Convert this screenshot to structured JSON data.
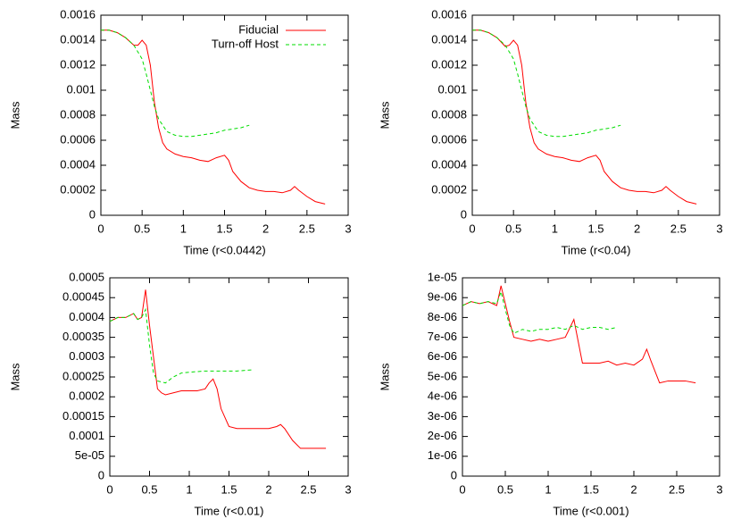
{
  "chart_data": [
    {
      "type": "line",
      "xlabel": "Time (r<0.0442)",
      "ylabel": "Mass",
      "xlim": [
        0,
        3
      ],
      "ylim": [
        0,
        0.0016
      ],
      "xticks": [
        0,
        0.5,
        1,
        1.5,
        2,
        2.5,
        3
      ],
      "yticks": [
        0,
        0.0002,
        0.0004,
        0.0006,
        0.0008,
        0.001,
        0.0012,
        0.0014,
        0.0016
      ],
      "legend": "upper right",
      "series": [
        {
          "name": "Fiducial",
          "color": "#ff0000",
          "dashed": false,
          "x": [
            0,
            0.1,
            0.2,
            0.3,
            0.4,
            0.45,
            0.5,
            0.55,
            0.6,
            0.65,
            0.7,
            0.75,
            0.8,
            0.9,
            1.0,
            1.1,
            1.2,
            1.3,
            1.4,
            1.5,
            1.55,
            1.6,
            1.7,
            1.8,
            1.9,
            2.0,
            2.1,
            2.2,
            2.3,
            2.35,
            2.4,
            2.5,
            2.6,
            2.72
          ],
          "values": [
            0.00148,
            0.00148,
            0.00146,
            0.00142,
            0.00136,
            0.00136,
            0.0014,
            0.00136,
            0.0012,
            0.0009,
            0.0007,
            0.00058,
            0.00053,
            0.00049,
            0.00047,
            0.00046,
            0.00044,
            0.00043,
            0.00046,
            0.00048,
            0.00044,
            0.00035,
            0.00027,
            0.00022,
            0.0002,
            0.00019,
            0.00019,
            0.00018,
            0.0002,
            0.00023,
            0.0002,
            0.00015,
            0.00011,
            9e-05
          ]
        },
        {
          "name": "Turn-off Host",
          "color": "#00dd00",
          "dashed": true,
          "x": [
            0,
            0.1,
            0.2,
            0.3,
            0.4,
            0.5,
            0.55,
            0.6,
            0.65,
            0.7,
            0.8,
            0.9,
            1.0,
            1.1,
            1.2,
            1.3,
            1.4,
            1.5,
            1.6,
            1.7,
            1.8
          ],
          "values": [
            0.00148,
            0.00148,
            0.00146,
            0.00142,
            0.00136,
            0.00125,
            0.00113,
            0.001,
            0.00087,
            0.00077,
            0.00067,
            0.00064,
            0.00063,
            0.00063,
            0.00064,
            0.00065,
            0.00066,
            0.00068,
            0.00069,
            0.0007,
            0.00072
          ]
        }
      ]
    },
    {
      "type": "line",
      "xlabel": "Time (r<0.04)",
      "ylabel": "Mass",
      "xlim": [
        0,
        3
      ],
      "ylim": [
        0,
        0.0016
      ],
      "xticks": [
        0,
        0.5,
        1,
        1.5,
        2,
        2.5,
        3
      ],
      "yticks": [
        0,
        0.0002,
        0.0004,
        0.0006,
        0.0008,
        0.001,
        0.0012,
        0.0014,
        0.0016
      ],
      "series": [
        {
          "color": "#ff0000",
          "dashed": false,
          "x": [
            0,
            0.1,
            0.2,
            0.3,
            0.4,
            0.45,
            0.5,
            0.55,
            0.6,
            0.65,
            0.7,
            0.75,
            0.8,
            0.9,
            1.0,
            1.1,
            1.2,
            1.3,
            1.4,
            1.5,
            1.55,
            1.6,
            1.7,
            1.8,
            1.9,
            2.0,
            2.1,
            2.2,
            2.3,
            2.35,
            2.4,
            2.5,
            2.6,
            2.72
          ],
          "values": [
            0.00148,
            0.00148,
            0.00146,
            0.00142,
            0.00135,
            0.00136,
            0.0014,
            0.00136,
            0.0012,
            0.0009,
            0.0007,
            0.00058,
            0.00053,
            0.00049,
            0.00047,
            0.00046,
            0.00044,
            0.00043,
            0.00046,
            0.00048,
            0.00044,
            0.00035,
            0.00027,
            0.00022,
            0.0002,
            0.00019,
            0.00019,
            0.00018,
            0.0002,
            0.00023,
            0.0002,
            0.00015,
            0.00011,
            9e-05
          ]
        },
        {
          "color": "#00dd00",
          "dashed": true,
          "x": [
            0,
            0.1,
            0.2,
            0.3,
            0.4,
            0.5,
            0.55,
            0.6,
            0.65,
            0.7,
            0.8,
            0.9,
            1.0,
            1.1,
            1.2,
            1.3,
            1.4,
            1.5,
            1.6,
            1.7,
            1.8
          ],
          "values": [
            0.00148,
            0.00148,
            0.00146,
            0.00142,
            0.00136,
            0.00125,
            0.00113,
            0.001,
            0.00087,
            0.00077,
            0.00067,
            0.00064,
            0.00063,
            0.00063,
            0.00064,
            0.00065,
            0.00066,
            0.00068,
            0.00069,
            0.0007,
            0.00072
          ]
        }
      ]
    },
    {
      "type": "line",
      "xlabel": "Time (r<0.01)",
      "ylabel": "Mass",
      "xlim": [
        0,
        3
      ],
      "ylim": [
        0,
        0.0005
      ],
      "xticks": [
        0,
        0.5,
        1,
        1.5,
        2,
        2.5,
        3
      ],
      "yticks": [
        0,
        {
          "value": 5e-05,
          "label": "5e-05"
        },
        0.0001,
        0.00015,
        0.0002,
        0.00025,
        0.0003,
        0.00035,
        0.0004,
        0.00045,
        0.0005
      ],
      "series": [
        {
          "color": "#ff0000",
          "dashed": false,
          "x": [
            0,
            0.1,
            0.2,
            0.3,
            0.35,
            0.4,
            0.45,
            0.5,
            0.55,
            0.6,
            0.65,
            0.7,
            0.8,
            0.9,
            1.0,
            1.1,
            1.2,
            1.25,
            1.3,
            1.35,
            1.4,
            1.5,
            1.6,
            1.8,
            2.0,
            2.1,
            2.15,
            2.2,
            2.3,
            2.4,
            2.5,
            2.72
          ],
          "values": [
            0.00039,
            0.0004,
            0.0004,
            0.00041,
            0.000395,
            0.0004,
            0.00047,
            0.00038,
            0.0003,
            0.00022,
            0.00021,
            0.000205,
            0.00021,
            0.000215,
            0.000215,
            0.000215,
            0.00022,
            0.000235,
            0.000245,
            0.00022,
            0.00017,
            0.000125,
            0.00012,
            0.00012,
            0.00012,
            0.000125,
            0.00013,
            0.00012,
            9e-05,
            7e-05,
            7e-05,
            7e-05
          ]
        },
        {
          "color": "#00dd00",
          "dashed": true,
          "x": [
            0,
            0.1,
            0.2,
            0.3,
            0.35,
            0.4,
            0.45,
            0.5,
            0.55,
            0.6,
            0.7,
            0.8,
            0.9,
            1.0,
            1.2,
            1.4,
            1.6,
            1.8
          ],
          "values": [
            0.00039,
            0.0004,
            0.0004,
            0.00041,
            0.000395,
            0.0004,
            0.00042,
            0.00033,
            0.00026,
            0.00024,
            0.000235,
            0.00025,
            0.00026,
            0.000262,
            0.000265,
            0.000265,
            0.000265,
            0.000268
          ]
        }
      ]
    },
    {
      "type": "line",
      "xlabel": "Time (r<0.001)",
      "ylabel": "Mass",
      "xlim": [
        0,
        3
      ],
      "ylim": [
        0,
        1e-05
      ],
      "xticks": [
        0,
        0.5,
        1,
        1.5,
        2,
        2.5,
        3
      ],
      "yticks": [
        0,
        {
          "value": 1e-06,
          "label": "1e-06"
        },
        {
          "value": 2e-06,
          "label": "2e-06"
        },
        {
          "value": 3e-06,
          "label": "3e-06"
        },
        {
          "value": 4e-06,
          "label": "4e-06"
        },
        {
          "value": 5e-06,
          "label": "5e-06"
        },
        {
          "value": 6e-06,
          "label": "6e-06"
        },
        {
          "value": 7e-06,
          "label": "7e-06"
        },
        {
          "value": 8e-06,
          "label": "8e-06"
        },
        {
          "value": 9e-06,
          "label": "9e-06"
        },
        {
          "value": 1e-05,
          "label": "1e-05"
        }
      ],
      "series": [
        {
          "color": "#ff0000",
          "dashed": false,
          "x": [
            0,
            0.1,
            0.2,
            0.3,
            0.4,
            0.45,
            0.5,
            0.55,
            0.6,
            0.7,
            0.8,
            0.9,
            1.0,
            1.1,
            1.2,
            1.3,
            1.4,
            1.5,
            1.6,
            1.7,
            1.8,
            1.9,
            2.0,
            2.1,
            2.15,
            2.2,
            2.3,
            2.4,
            2.5,
            2.6,
            2.72
          ],
          "values": [
            8.6e-06,
            8.8e-06,
            8.7e-06,
            8.8e-06,
            8.6e-06,
            9.6e-06,
            8.7e-06,
            7.8e-06,
            7e-06,
            6.9e-06,
            6.8e-06,
            6.9e-06,
            6.8e-06,
            6.9e-06,
            7e-06,
            7.9e-06,
            5.7e-06,
            5.7e-06,
            5.7e-06,
            5.8e-06,
            5.6e-06,
            5.7e-06,
            5.6e-06,
            5.9e-06,
            6.4e-06,
            5.8e-06,
            4.7e-06,
            4.8e-06,
            4.8e-06,
            4.8e-06,
            4.7e-06
          ]
        },
        {
          "color": "#00dd00",
          "dashed": true,
          "x": [
            0,
            0.1,
            0.2,
            0.3,
            0.4,
            0.45,
            0.5,
            0.55,
            0.6,
            0.7,
            0.8,
            0.9,
            1.0,
            1.1,
            1.2,
            1.3,
            1.4,
            1.5,
            1.6,
            1.7,
            1.8
          ],
          "values": [
            8.6e-06,
            8.8e-06,
            8.7e-06,
            8.8e-06,
            8.7e-06,
            9.3e-06,
            8.4e-06,
            7.6e-06,
            7.2e-06,
            7.4e-06,
            7.3e-06,
            7.4e-06,
            7.4e-06,
            7.5e-06,
            7.4e-06,
            7.6e-06,
            7.4e-06,
            7.5e-06,
            7.5e-06,
            7.4e-06,
            7.5e-06
          ]
        }
      ]
    }
  ]
}
